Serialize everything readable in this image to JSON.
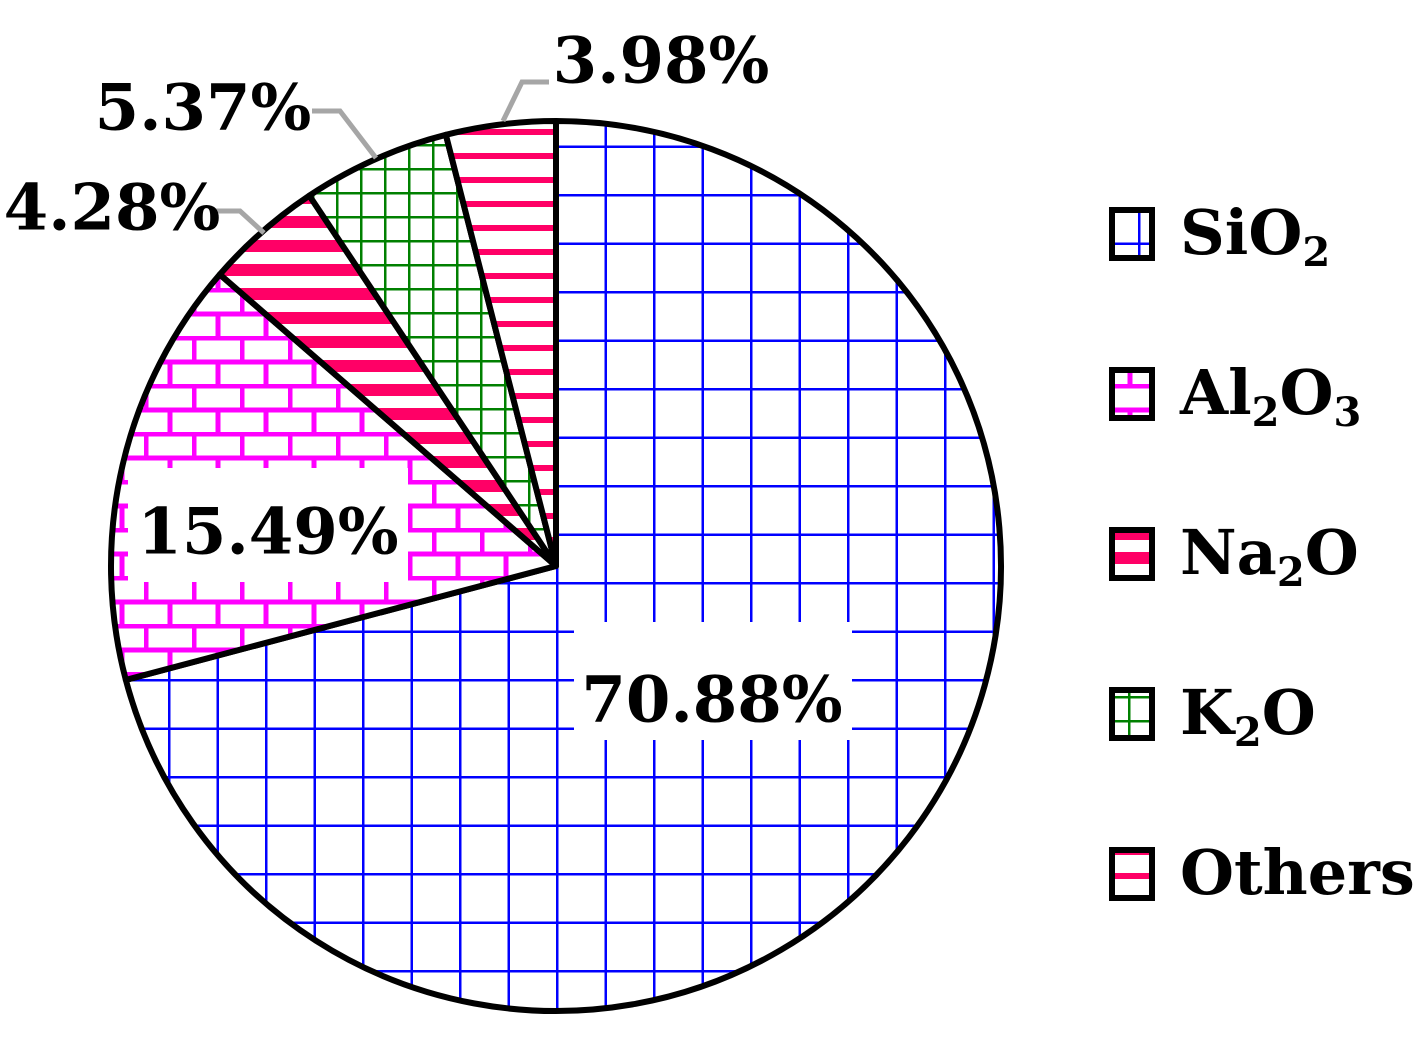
{
  "chart_data": {
    "type": "pie",
    "start_angle_deg": 0,
    "direction": "clockwise",
    "slices": [
      {
        "name": "SiO2",
        "legend_main": "SiO",
        "legend_sub": "2",
        "legend_main2": "",
        "legend_sub2": "",
        "value": 70.88,
        "label": "70.88%",
        "color": "#0000ff",
        "pattern": "grid",
        "label_style": "inside-boxed"
      },
      {
        "name": "Al2O3",
        "legend_main": "Al",
        "legend_sub": "2",
        "legend_main2": "O",
        "legend_sub2": "3",
        "value": 15.49,
        "label": "15.49%",
        "color": "#ff00ff",
        "pattern": "brick",
        "label_style": "inside-boxed"
      },
      {
        "name": "Na2O",
        "legend_main": "Na",
        "legend_sub": "2",
        "legend_main2": "O",
        "legend_sub2": "",
        "value": 4.28,
        "label": "4.28%",
        "color": "#ff0066",
        "pattern": "thick-horizontal",
        "label_style": "outside-leader"
      },
      {
        "name": "K2O",
        "legend_main": "K",
        "legend_sub": "2",
        "legend_main2": "O",
        "legend_sub2": "",
        "value": 5.37,
        "label": "5.37%",
        "color": "#008000",
        "pattern": "small-grid",
        "label_style": "outside-leader"
      },
      {
        "name": "Others",
        "legend_main": "Others",
        "legend_sub": "",
        "legend_main2": "",
        "legend_sub2": "",
        "value": 3.98,
        "label": "3.98%",
        "color": "#ff0066",
        "pattern": "thin-horizontal",
        "label_style": "outside-leader"
      }
    ],
    "legend_position": "right",
    "leader_color": "#a6a6a6"
  }
}
